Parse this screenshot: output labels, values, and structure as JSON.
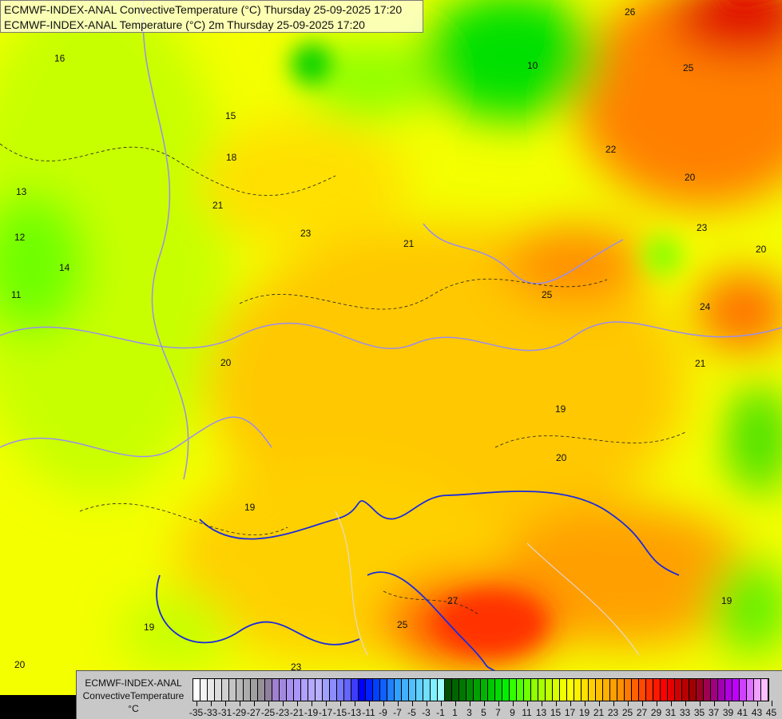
{
  "header": {
    "line1": "ECMWF-INDEX-ANAL ConvectiveTemperature (°C) Thursday 25-09-2025 17:20",
    "line2": "ECMWF-INDEX-ANAL Temperature (°C) 2m Thursday 25-09-2025 17:20"
  },
  "legend": {
    "source": "ECMWF-INDEX-ANAL",
    "parameter": "ConvectiveTemperature",
    "unit": "°C",
    "tick_labels": [
      "-35",
      "-33",
      "-31",
      "-29",
      "-27",
      "-25",
      "-23",
      "-21",
      "-19",
      "-17",
      "-15",
      "-13",
      "-11",
      "-9",
      "-7",
      "-5",
      "-3",
      "-1",
      "1",
      "3",
      "5",
      "7",
      "9",
      "11",
      "13",
      "15",
      "17",
      "19",
      "21",
      "23",
      "25",
      "27",
      "29",
      "31",
      "33",
      "35",
      "37",
      "39",
      "41",
      "43",
      "45"
    ],
    "colors": [
      "#ffffff",
      "#f4f4f4",
      "#e8e8e8",
      "#dcdcdc",
      "#d0d0d0",
      "#c4c4c4",
      "#b8b8b8",
      "#acacac",
      "#a0a0a0",
      "#989098",
      "#9080a0",
      "#a080d0",
      "#a488e0",
      "#a890f0",
      "#aa96f8",
      "#b0a0ff",
      "#b4a8ff",
      "#b8b0ff",
      "#a0a0ff",
      "#8c8cff",
      "#7878ff",
      "#6464ff",
      "#3c3cff",
      "#0000ff",
      "#0020ff",
      "#0040ff",
      "#1060ff",
      "#2080ff",
      "#30a0ff",
      "#40b0ff",
      "#50c0ff",
      "#60d0ff",
      "#70e0ff",
      "#80f0ff",
      "#a0ffff",
      "#005000",
      "#006400",
      "#007800",
      "#008c00",
      "#00a000",
      "#00b400",
      "#00c800",
      "#00dc00",
      "#00f000",
      "#30ff00",
      "#50ff00",
      "#70ff00",
      "#90ff00",
      "#a8ff00",
      "#c0ff00",
      "#d8ff00",
      "#f0ff00",
      "#ffff00",
      "#fff000",
      "#ffe000",
      "#ffd000",
      "#ffc000",
      "#ffb000",
      "#ffa000",
      "#ff9000",
      "#ff7800",
      "#ff6000",
      "#ff4800",
      "#ff3000",
      "#ff1800",
      "#ff0000",
      "#e80000",
      "#d00000",
      "#b80000",
      "#a00000",
      "#a00020",
      "#a00050",
      "#a00080",
      "#a000b0",
      "#b000e0",
      "#c000ff",
      "#d040ff",
      "#e070ff",
      "#f0a0ff",
      "#ffc0ff"
    ]
  },
  "contour_labels": [
    "16",
    "13",
    "15",
    "18",
    "21",
    "23",
    "21",
    "25",
    "20",
    "19",
    "27",
    "25",
    "10",
    "26",
    "25",
    "20",
    "23",
    "24",
    "21",
    "20",
    "19",
    "20",
    "19",
    "14",
    "12",
    "11",
    "20",
    "23",
    "22",
    "19"
  ]
}
